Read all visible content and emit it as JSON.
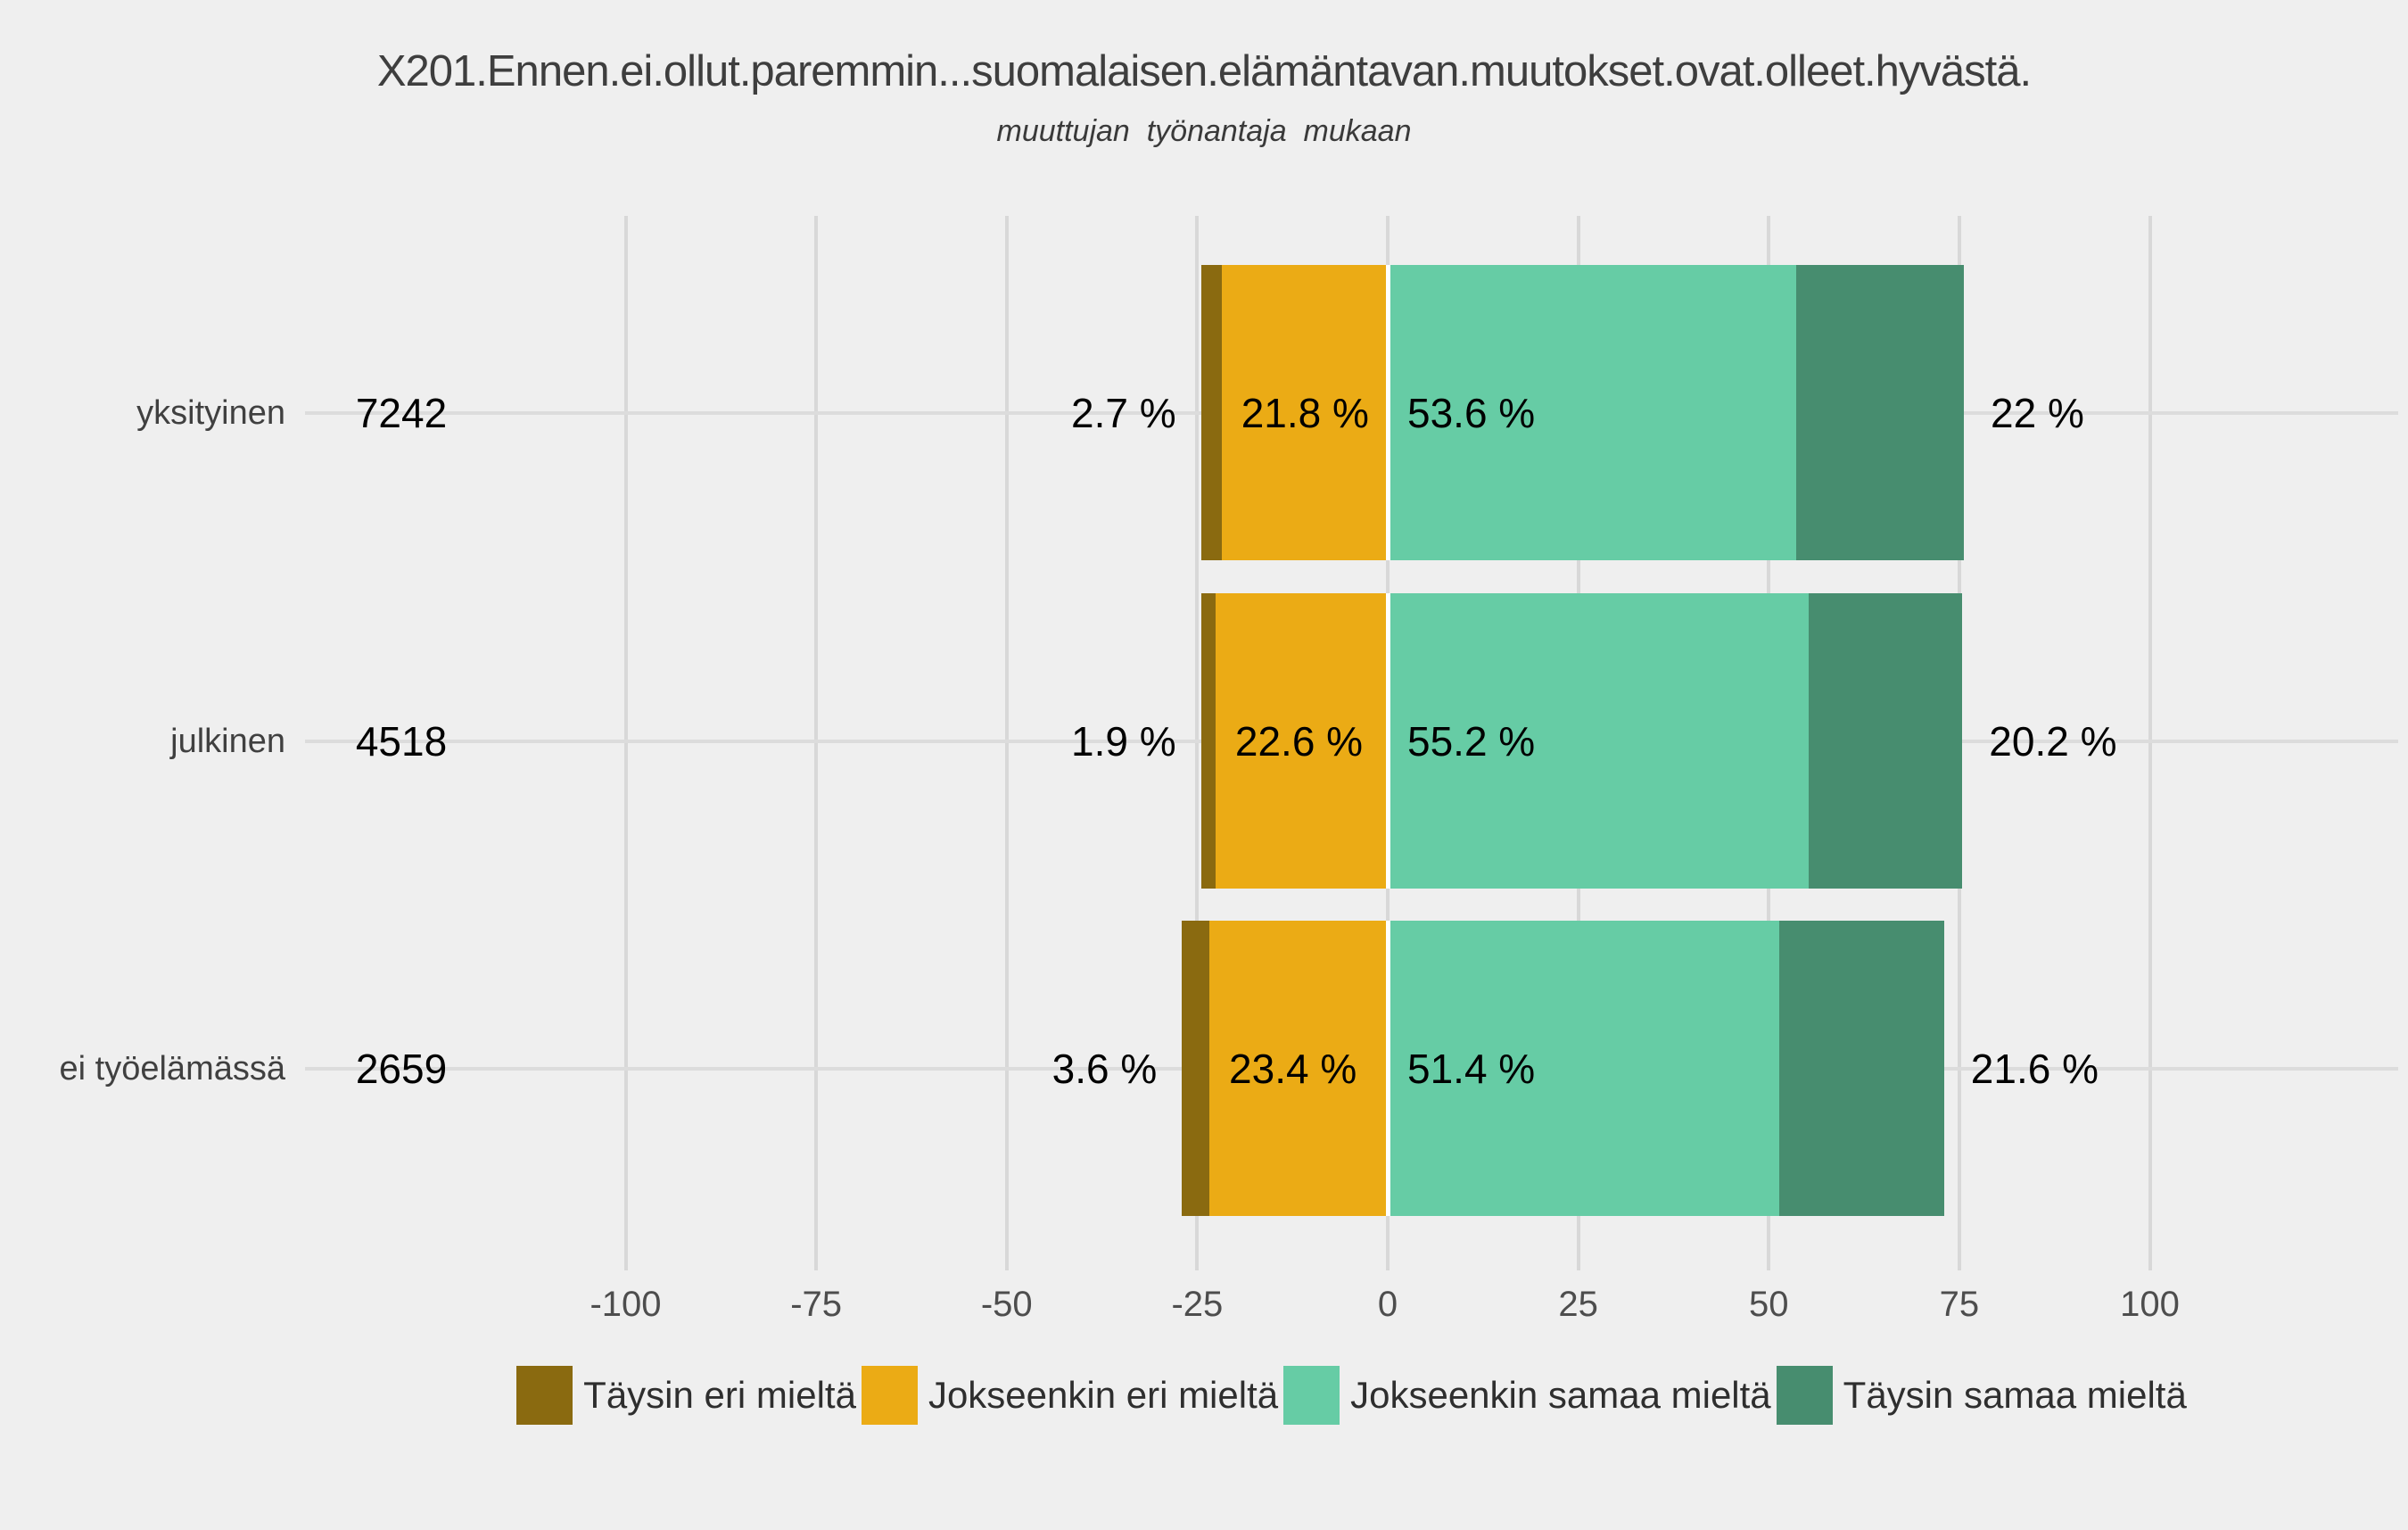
{
  "title": "X201.Ennen.ei.ollut.paremmin...suomalaisen.elämäntavan.muutokset.ovat.olleet.hyvästä.",
  "subtitle": "muuttujan  työnantaja  mukaan",
  "chart_data": {
    "type": "bar",
    "orientation": "horizontal-diverging-stacked-likert",
    "title": "X201.Ennen.ei.ollut.paremmin...suomalaisen.elämäntavan.muutokset.ovat.olleet.hyvästä.",
    "subtitle": "muuttujan  työnantaja  mukaan",
    "categories": [
      "yksityinen",
      "julkinen",
      "ei työelämässä"
    ],
    "counts": [
      "7242",
      "4518",
      "2659"
    ],
    "series": [
      {
        "name": "Täysin eri mieltä",
        "color": "#8A6A10",
        "side": "negative",
        "values": [
          2.7,
          1.9,
          3.6
        ],
        "labels": [
          "2.7 %",
          "1.9 %",
          "3.6 %"
        ],
        "label_position": "outside-left"
      },
      {
        "name": "Jokseenkin eri mieltä",
        "color": "#EBAB15",
        "side": "negative",
        "values": [
          21.8,
          22.6,
          23.4
        ],
        "labels": [
          "21.8 %",
          "22.6 %",
          "23.4 %"
        ],
        "label_position": "inside"
      },
      {
        "name": "Jokseenkin samaa mieltä",
        "color": "#66CCA5",
        "side": "positive",
        "values": [
          53.6,
          55.2,
          51.4
        ],
        "labels": [
          "53.6 %",
          "55.2 %",
          "51.4 %"
        ],
        "label_position": "inside"
      },
      {
        "name": "Täysin samaa mieltä",
        "color": "#478D6F",
        "side": "positive",
        "values": [
          22,
          20.2,
          21.6
        ],
        "labels": [
          "22 %",
          "20.2 %",
          "21.6 %"
        ],
        "label_position": "outside-right"
      }
    ],
    "x_ticks": [
      "-100",
      "-75",
      "-50",
      "-25",
      "0",
      "25",
      "50",
      "75",
      "100"
    ],
    "x_tick_values": [
      -100,
      -75,
      -50,
      -25,
      0,
      25,
      50,
      75,
      100
    ],
    "xlim": [
      -100,
      100
    ],
    "grid": true,
    "legend_position": "bottom",
    "colors": {
      "background": "#EFEFEF",
      "gridline": "#D8D8D8",
      "zero_separator": "#FFFFFF",
      "title_text": "#3E3E3E",
      "axis_text": "#4D4D4D",
      "bar_label_text": "#000000"
    }
  }
}
